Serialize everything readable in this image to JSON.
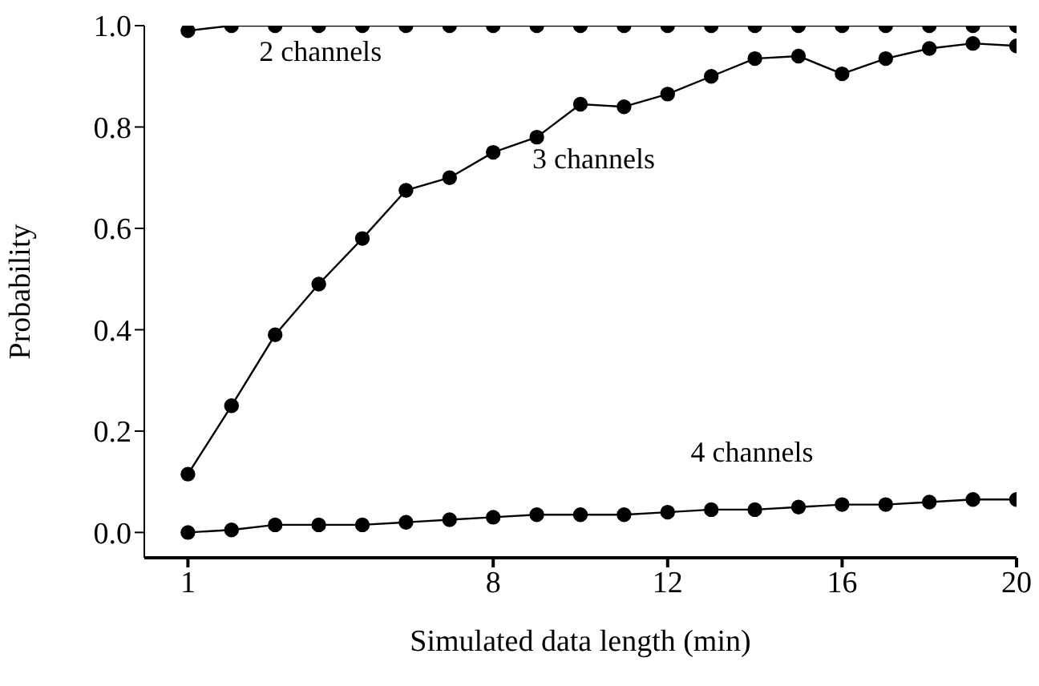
{
  "chart_data": {
    "type": "line",
    "xlabel": "Simulated data length (min)",
    "ylabel": "Probability",
    "x": [
      1,
      2,
      3,
      4,
      5,
      6,
      7,
      8,
      9,
      10,
      11,
      12,
      13,
      14,
      15,
      16,
      17,
      18,
      19,
      20
    ],
    "series": [
      {
        "name": "2 channels",
        "color": "#000000",
        "values": [
          0.99,
          1,
          1,
          1,
          1,
          1,
          1,
          1,
          1,
          1,
          1,
          1,
          1,
          1,
          1,
          1,
          1,
          1,
          1,
          1
        ]
      },
      {
        "name": "3 channels",
        "color": "#000000",
        "values": [
          0.115,
          0.25,
          0.39,
          0.49,
          0.58,
          0.675,
          0.7,
          0.75,
          0.78,
          0.845,
          0.84,
          0.865,
          0.9,
          0.935,
          0.94,
          0.905,
          0.935,
          0.955,
          0.965,
          0.96
        ]
      },
      {
        "name": "4 channels",
        "color": "#000000",
        "values": [
          0,
          0.005,
          0.015,
          0.015,
          0.015,
          0.02,
          0.025,
          0.03,
          0.035,
          0.035,
          0.035,
          0.04,
          0.045,
          0.045,
          0.05,
          0.055,
          0.055,
          0.06,
          0.065,
          0.065
        ]
      }
    ],
    "xlim": [
      0,
      20
    ],
    "xticks": [
      1,
      8,
      12,
      16,
      20
    ],
    "ylim": [
      -0.05,
      1
    ],
    "yticks": [
      {
        "value": 0,
        "label": "0.0"
      },
      0.2,
      0.4,
      0.6,
      0.8,
      {
        "value": 1,
        "label": "1.0"
      }
    ],
    "grid": false,
    "legend": false,
    "marker": "circle",
    "line_style": "solid"
  }
}
